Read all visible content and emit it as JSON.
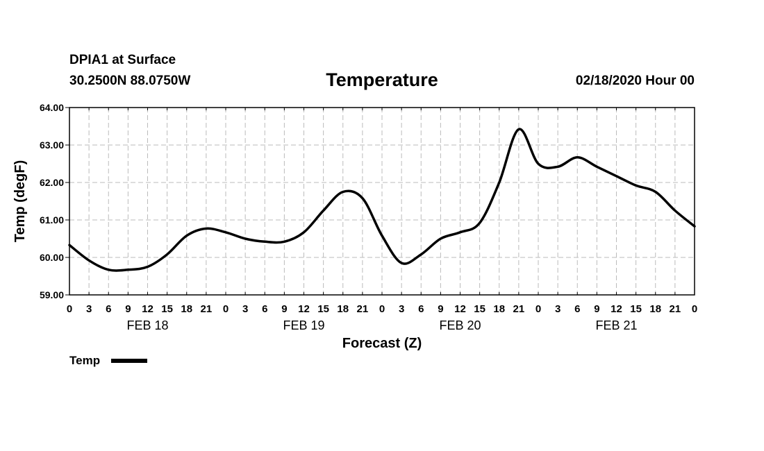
{
  "header": {
    "station": "DPIA1 at Surface",
    "coords": "30.2500N 88.0750W",
    "title": "Temperature",
    "datetime": "02/18/2020 Hour 00"
  },
  "legend": {
    "label": "Temp"
  },
  "chart_data": {
    "type": "line",
    "title": "Temperature",
    "xlabel": "Forecast (Z)",
    "ylabel": "Temp (degF)",
    "ylim": [
      59.0,
      64.0
    ],
    "yticks": [
      "59.00",
      "60.00",
      "61.00",
      "62.00",
      "63.00",
      "64.00"
    ],
    "xlim": [
      0,
      96
    ],
    "xticks": [
      "0",
      "3",
      "6",
      "9",
      "12",
      "15",
      "18",
      "21",
      "0",
      "3",
      "6",
      "9",
      "12",
      "15",
      "18",
      "21",
      "0",
      "3",
      "6",
      "9",
      "12",
      "15",
      "18",
      "21",
      "0",
      "3",
      "6",
      "9",
      "12",
      "15",
      "18",
      "21",
      "0"
    ],
    "day_labels": [
      "FEB 18",
      "FEB 19",
      "FEB 20",
      "FEB 21"
    ],
    "grid": true,
    "legend_position": "bottom-left",
    "line_color": "#000000",
    "series": [
      {
        "name": "Temp",
        "x": [
          0,
          3,
          6,
          9,
          12,
          15,
          18,
          21,
          24,
          27,
          30,
          33,
          36,
          39,
          42,
          45,
          48,
          51,
          54,
          57,
          60,
          63,
          66,
          69,
          72,
          75,
          78,
          81,
          84,
          87,
          90,
          93,
          96
        ],
        "values": [
          60.33,
          59.92,
          59.67,
          59.67,
          59.75,
          60.08,
          60.58,
          60.77,
          60.67,
          60.5,
          60.42,
          60.42,
          60.67,
          61.25,
          61.75,
          61.58,
          60.58,
          59.85,
          60.08,
          60.5,
          60.67,
          60.92,
          62.0,
          63.42,
          62.5,
          62.42,
          62.67,
          62.42,
          62.17,
          61.92,
          61.75,
          61.25,
          60.83
        ]
      }
    ]
  }
}
